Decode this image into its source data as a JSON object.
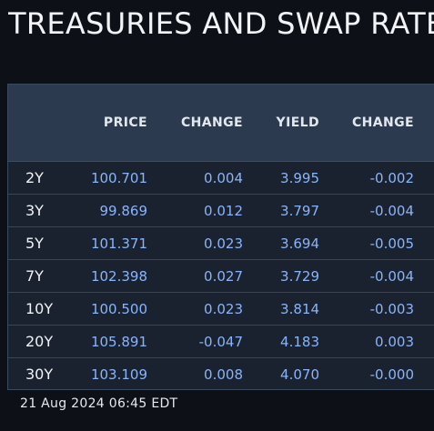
{
  "title": "TREASURIES AND SWAP RATES",
  "columns": {
    "price": "PRICE",
    "change": "CHANGE",
    "yield": "YIELD",
    "yield_change": "CHANGE"
  },
  "rows": [
    {
      "tenor": "2Y",
      "price": "100.701",
      "change": "0.004",
      "yield": "3.995",
      "yield_change": "-0.002"
    },
    {
      "tenor": "3Y",
      "price": "99.869",
      "change": "0.012",
      "yield": "3.797",
      "yield_change": "-0.004"
    },
    {
      "tenor": "5Y",
      "price": "101.371",
      "change": "0.023",
      "yield": "3.694",
      "yield_change": "-0.005"
    },
    {
      "tenor": "7Y",
      "price": "102.398",
      "change": "0.027",
      "yield": "3.729",
      "yield_change": "-0.004"
    },
    {
      "tenor": "10Y",
      "price": "100.500",
      "change": "0.023",
      "yield": "3.814",
      "yield_change": "-0.003"
    },
    {
      "tenor": "20Y",
      "price": "105.891",
      "change": "-0.047",
      "yield": "4.183",
      "yield_change": "0.003"
    },
    {
      "tenor": "30Y",
      "price": "103.109",
      "change": "0.008",
      "yield": "4.070",
      "yield_change": "-0.000"
    }
  ],
  "timestamp": "21 Aug 2024 06:45 EDT",
  "colors": {
    "background": "#0d1117",
    "header_bg": "#2b3a4e",
    "row_bg": "#1a2230",
    "value_text": "#8ab4f8"
  }
}
